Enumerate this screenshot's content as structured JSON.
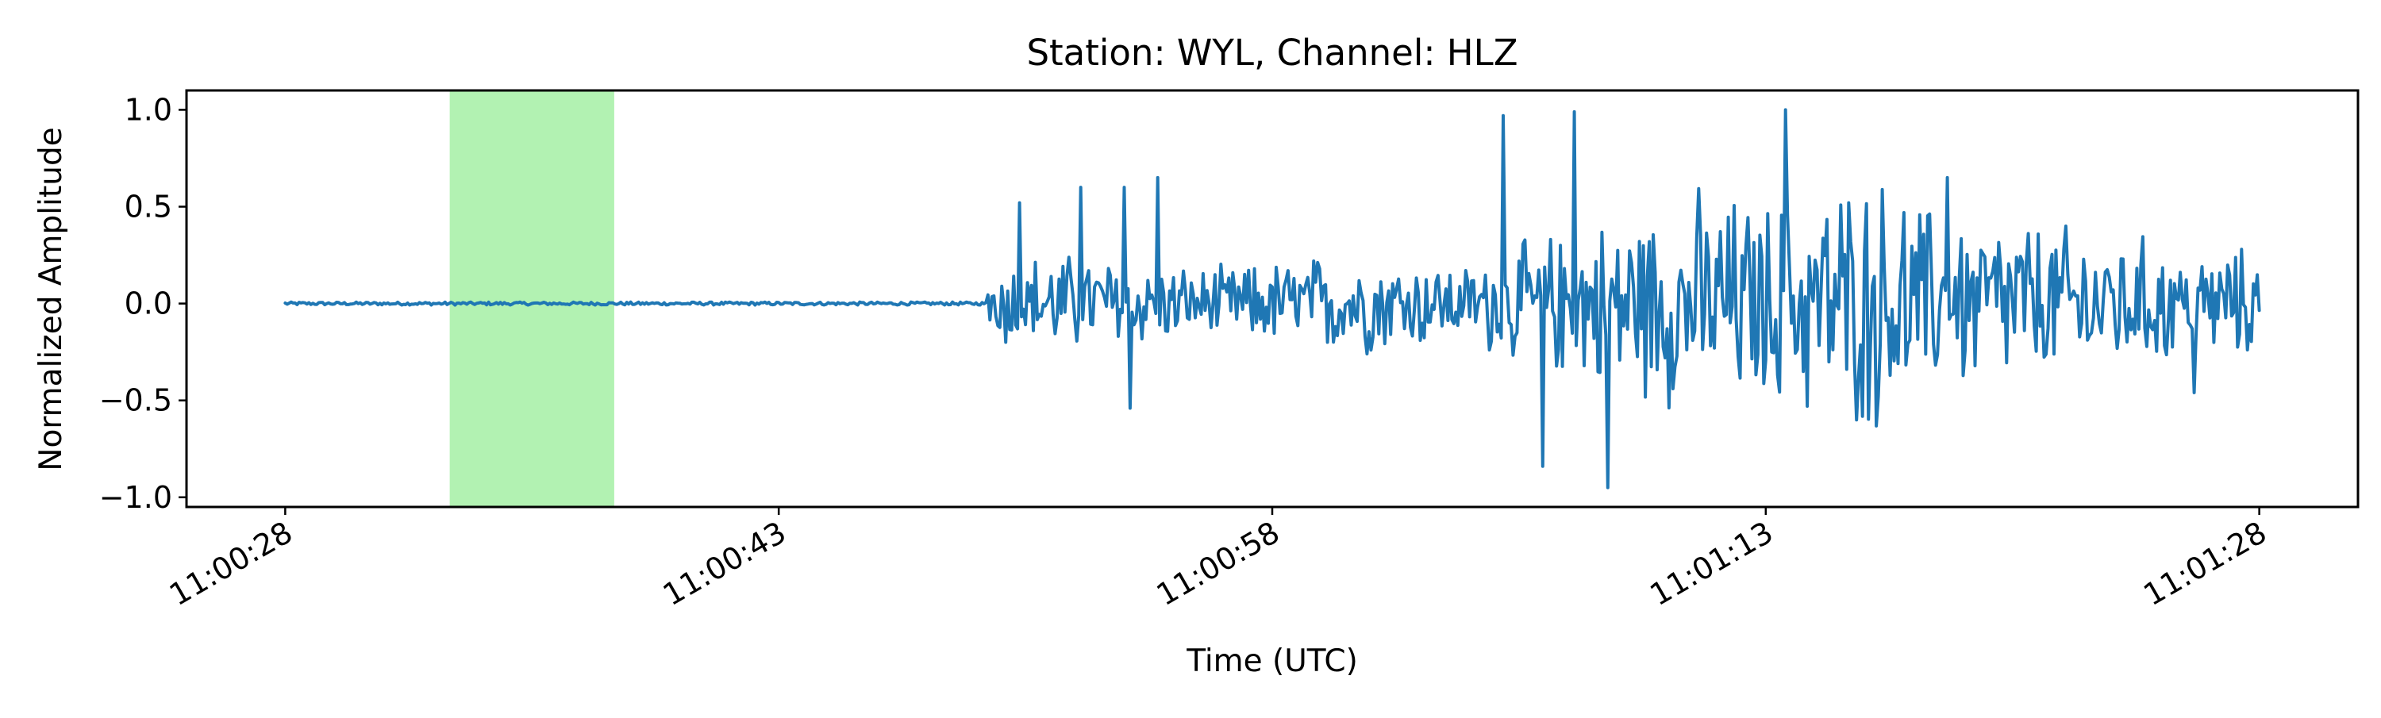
{
  "chart_data": {
    "type": "line",
    "title": "Station: WYL, Channel: HLZ",
    "xlabel": "Time (UTC)",
    "ylabel": "Normalized Amplitude",
    "x_unit": "time",
    "xlim": [
      "11:00:25",
      "11:01:31"
    ],
    "ylim": [
      -1.05,
      1.1
    ],
    "x_ticks": [
      "11:00:28",
      "11:00:43",
      "11:00:58",
      "11:01:13",
      "11:01:28"
    ],
    "x_tick_labels": [
      "11:00:28",
      "11:00:43",
      "11:00:58",
      "11:01:13",
      "11:01:28"
    ],
    "y_ticks": [
      -1.0,
      -0.5,
      0.0,
      0.5,
      1.0
    ],
    "y_tick_labels": [
      "−1.0",
      "−0.5",
      "0.0",
      "0.5",
      "1.0"
    ],
    "grid": false,
    "legend": "none",
    "colors": {
      "trace": "#1f77b4",
      "window_shade": "#b2f2b2"
    },
    "shaded_window": {
      "start": "11:00:33",
      "end": "11:00:38"
    },
    "series": [
      {
        "start": "11:00:28",
        "end": "11:01:28",
        "noise_end": "11:00:49.3",
        "pre_event_level": 0.0,
        "max": 1.0,
        "min": -0.95,
        "peaks": [
          {
            "t": "11:00:50.3",
            "v": 0.52
          },
          {
            "t": "11:00:52.2",
            "v": 0.6
          },
          {
            "t": "11:00:53.5",
            "v": 0.6
          },
          {
            "t": "11:00:53.7",
            "v": -0.54
          },
          {
            "t": "11:00:54.5",
            "v": 0.65
          },
          {
            "t": "11:01:05.0",
            "v": 0.97
          },
          {
            "t": "11:01:06.2",
            "v": -0.84
          },
          {
            "t": "11:01:07.2",
            "v": 0.99
          },
          {
            "t": "11:01:08.2",
            "v": -0.95
          },
          {
            "t": "11:01:13.6",
            "v": 1.0
          },
          {
            "t": "11:01:18.5",
            "v": 0.65
          },
          {
            "t": "11:01:26.0",
            "v": -0.46
          }
        ]
      }
    ]
  }
}
